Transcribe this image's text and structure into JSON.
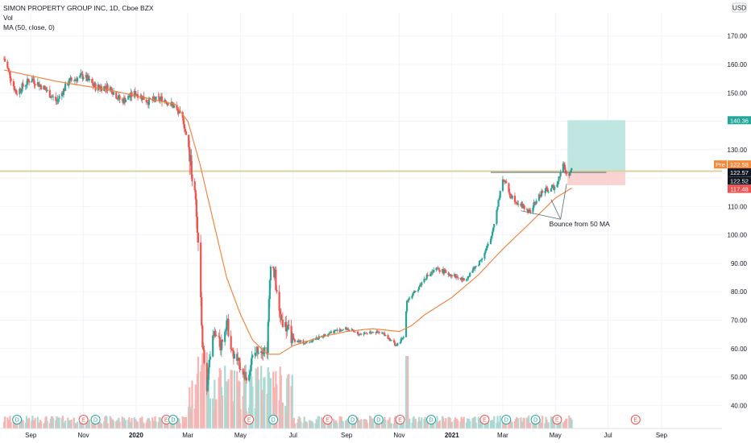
{
  "legend": {
    "title": "SIMON PROPERTY GROUP INC, 1D, Cboe BZX",
    "volume": "Vol",
    "indicator": "MA (50, close, 0)"
  },
  "currency": "USD",
  "colors": {
    "up": "#26a69a",
    "down": "#ef5350",
    "ma": "#f57c32",
    "volUp": "#aad9d3",
    "volDown": "#f5b5b3",
    "target": "#bfe6e1",
    "stop": "#f9d3d2",
    "bg": "#ffffff",
    "grid": "#f0f3fa"
  },
  "annotation": "Bounce from 50 MA",
  "price_tags": [
    {
      "label": "Pre",
      "value": "122.58",
      "color": "#f5883b"
    },
    {
      "value": "140.36",
      "color": "#26a69a"
    },
    {
      "value": "122.57",
      "color": "#131722"
    },
    {
      "value": "122.52",
      "color": "#131722"
    },
    {
      "value": "117.48",
      "color": "#ef5350"
    }
  ],
  "events": [
    {
      "type": "D",
      "x": "2019-08-16"
    },
    {
      "type": "E",
      "x": "2019-11-01"
    },
    {
      "type": "D",
      "x": "2019-11-15"
    },
    {
      "type": "E",
      "x": "2020-02-05"
    },
    {
      "type": "D",
      "x": "2020-02-13"
    },
    {
      "type": "E",
      "x": "2020-05-11"
    },
    {
      "type": "D",
      "x": "2020-06-08"
    },
    {
      "type": "E",
      "x": "2020-08-10"
    },
    {
      "type": "D",
      "x": "2020-09-08"
    },
    {
      "type": "D",
      "x": "2020-10-08"
    },
    {
      "type": "E",
      "x": "2020-11-02"
    },
    {
      "type": "D",
      "x": "2020-12-08"
    },
    {
      "type": "E",
      "x": "2021-02-08"
    },
    {
      "type": "D",
      "x": "2021-03-05"
    },
    {
      "type": "D",
      "x": "2021-04-08"
    },
    {
      "type": "E",
      "x": "2021-05-03"
    },
    {
      "type": "E",
      "x": "2021-08-02"
    }
  ],
  "chart_data": {
    "type": "line",
    "title": "SIMON PROPERTY GROUP INC, 1D, Cboe BZX",
    "x_ticks": [
      "Sep",
      "Nov",
      "2020",
      "Mar",
      "May",
      "Jul",
      "Sep",
      "Nov",
      "2021",
      "Mar",
      "May",
      "Jul",
      "Sep"
    ],
    "y_ticks": [
      40,
      50,
      60,
      70,
      80,
      90,
      100,
      110,
      120,
      130,
      140,
      150,
      160,
      170
    ],
    "ylim": [
      33,
      177
    ],
    "series": [
      {
        "name": "SIMON PROPERTY GROUP INC",
        "x": [
          "2019-08-01",
          "2019-08-15",
          "2019-09-01",
          "2019-09-15",
          "2019-10-01",
          "2019-10-15",
          "2019-11-01",
          "2019-11-15",
          "2019-12-01",
          "2019-12-15",
          "2020-01-01",
          "2020-01-15",
          "2020-02-01",
          "2020-02-15",
          "2020-02-25",
          "2020-03-05",
          "2020-03-10",
          "2020-03-13",
          "2020-03-18",
          "2020-03-23",
          "2020-03-26",
          "2020-04-01",
          "2020-04-08",
          "2020-04-15",
          "2020-04-22",
          "2020-05-01",
          "2020-05-08",
          "2020-05-14",
          "2020-05-21",
          "2020-06-01",
          "2020-06-05",
          "2020-06-10",
          "2020-06-15",
          "2020-07-01",
          "2020-07-15",
          "2020-08-01",
          "2020-08-15",
          "2020-09-01",
          "2020-09-15",
          "2020-10-01",
          "2020-10-15",
          "2020-10-29",
          "2020-11-06",
          "2020-11-10",
          "2020-11-20",
          "2020-12-01",
          "2020-12-15",
          "2021-01-01",
          "2021-01-15",
          "2021-02-01",
          "2021-02-15",
          "2021-03-01",
          "2021-03-10",
          "2021-03-20",
          "2021-04-01",
          "2021-04-15",
          "2021-05-01",
          "2021-05-10",
          "2021-05-14",
          "2021-05-20"
        ],
        "values": [
          162,
          150,
          155,
          152,
          147,
          154,
          156,
          152,
          152,
          147,
          150,
          147,
          148,
          145,
          140,
          124,
          110,
          96,
          62,
          45,
          58,
          65,
          61,
          70,
          58,
          54,
          49,
          56,
          60,
          60,
          92,
          85,
          72,
          63,
          62,
          64,
          66,
          67,
          65,
          66,
          65,
          61,
          64,
          77,
          80,
          85,
          88,
          86,
          84,
          90,
          98,
          120,
          114,
          111,
          108,
          115,
          117,
          125,
          121,
          122.57
        ]
      },
      {
        "name": "MA (50, close, 0)",
        "x": [
          "2019-08-01",
          "2019-10-01",
          "2019-12-01",
          "2020-01-15",
          "2020-02-15",
          "2020-03-01",
          "2020-03-15",
          "2020-04-01",
          "2020-04-15",
          "2020-05-01",
          "2020-05-15",
          "2020-06-01",
          "2020-06-15",
          "2020-07-01",
          "2020-08-01",
          "2020-09-01",
          "2020-10-01",
          "2020-11-01",
          "2020-11-15",
          "2020-12-01",
          "2021-01-01",
          "2021-02-01",
          "2021-03-01",
          "2021-04-01",
          "2021-05-01",
          "2021-05-20"
        ],
        "values": [
          158,
          154,
          151,
          148,
          146,
          140,
          125,
          103,
          85,
          72,
          63,
          58,
          58,
          61,
          64,
          66,
          67,
          66,
          68,
          72,
          78,
          86,
          95,
          104,
          113,
          116.5
        ]
      }
    ],
    "trade_levels": {
      "target": 140.36,
      "entry": 122.57,
      "stop": 117.48
    },
    "resistance_level": 122.0
  }
}
